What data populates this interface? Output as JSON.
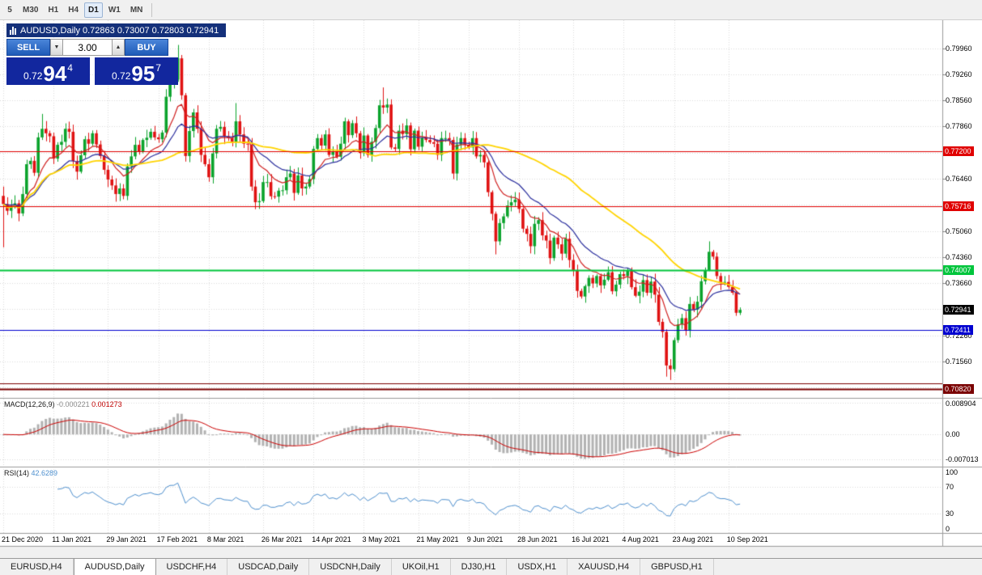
{
  "toolbar": {
    "timeframes": [
      "5",
      "M30",
      "H1",
      "H4",
      "D1",
      "W1",
      "MN"
    ],
    "active_timeframe": "D1"
  },
  "chart": {
    "symbol": "AUDUSD,Daily",
    "title": "AUDUSD,Daily 0.72863 0.73007 0.72803 0.72941"
  },
  "trade_panel": {
    "sell_label": "SELL",
    "buy_label": "BUY",
    "volume": "3.00",
    "sell_price": {
      "prefix": "0.72",
      "big": "94",
      "sup": "4"
    },
    "buy_price": {
      "prefix": "0.72",
      "big": "95",
      "sup": "7"
    }
  },
  "indicators": {
    "macd": {
      "name": "MACD(12,26,9)",
      "value1": "-0.000221",
      "value2": "0.001273"
    },
    "rsi": {
      "name": "RSI(14)",
      "value": "42.6289"
    },
    "macd_axis": [
      "0.008904",
      "0.00",
      "-0.007013"
    ],
    "rsi_axis": [
      "100",
      "70",
      "30",
      "0"
    ]
  },
  "price_axis": {
    "plain_labels": [
      "0.79960",
      "0.79260",
      "0.78560",
      "0.77860",
      "0.76460",
      "0.75060",
      "0.74360",
      "0.73660",
      "0.72260",
      "0.71560"
    ],
    "tags": [
      {
        "text": "0.77200",
        "bg": "#e00000"
      },
      {
        "text": "0.75716",
        "bg": "#e00000"
      },
      {
        "text": "0.74007",
        "bg": "#00c53c"
      },
      {
        "text": "0.72941",
        "bg": "#000000"
      },
      {
        "text": "0.72411",
        "bg": "#0000d0"
      },
      {
        "text": "0.70820",
        "bg": "#7a0000"
      }
    ]
  },
  "tabs": {
    "items": [
      {
        "label": "EURUSD,H4",
        "active": false
      },
      {
        "label": "AUDUSD,Daily",
        "active": true
      },
      {
        "label": "USDCHF,H4",
        "active": false
      },
      {
        "label": "USDCAD,Daily",
        "active": false
      },
      {
        "label": "USDCNH,Daily",
        "active": false
      },
      {
        "label": "UKOil,H1",
        "active": false
      },
      {
        "label": "DJ30,H1",
        "active": false
      },
      {
        "label": "USDX,H1",
        "active": false
      },
      {
        "label": "XAUUSD,H4",
        "active": false
      },
      {
        "label": "GBPUSD,H1",
        "active": false
      }
    ]
  },
  "colors": {
    "candle_up": "#0ba32c",
    "candle_down": "#e01212",
    "ma_fast": "#d02020",
    "ma_mid": "#2b2f9e",
    "ma_slow": "#ffd400",
    "macd_hist": "#b2b2b2",
    "macd_signal": "#cc0000",
    "rsi_line": "#4d8fce",
    "grid": "#dadada",
    "separator": "#9a9a9a"
  },
  "chart_data": {
    "type": "candlestick",
    "symbol": "AUDUSD",
    "timeframe": "Daily",
    "last_ohlc": {
      "open": 0.72863,
      "high": 0.73007,
      "low": 0.72803,
      "close": 0.72941
    },
    "first_open": 0.76,
    "price_range": {
      "min": 0.7058,
      "max": 0.8067
    },
    "grid": {
      "top": 0.7996,
      "step": 0.007
    },
    "closes": [
      0.7578,
      0.756,
      0.7571,
      0.758,
      0.7553,
      0.7605,
      0.7685,
      0.7694,
      0.7662,
      0.7757,
      0.778,
      0.7768,
      0.776,
      0.77,
      0.7737,
      0.7745,
      0.778,
      0.7772,
      0.7693,
      0.7665,
      0.7709,
      0.7752,
      0.774,
      0.7768,
      0.7738,
      0.7707,
      0.767,
      0.7644,
      0.7628,
      0.7605,
      0.762,
      0.76,
      0.7679,
      0.7706,
      0.7737,
      0.7719,
      0.775,
      0.7756,
      0.7772,
      0.7757,
      0.7752,
      0.777,
      0.7866,
      0.791,
      0.7912,
      0.7969,
      0.787,
      0.7707,
      0.7774,
      0.7824,
      0.778,
      0.771,
      0.7685,
      0.765,
      0.7714,
      0.778,
      0.7785,
      0.776,
      0.7755,
      0.7745,
      0.78,
      0.7765,
      0.774,
      0.7738,
      0.7625,
      0.7583,
      0.7586,
      0.7637,
      0.7637,
      0.7599,
      0.7598,
      0.7614,
      0.7615,
      0.765,
      0.766,
      0.7608,
      0.7655,
      0.762,
      0.7625,
      0.7645,
      0.7726,
      0.7755,
      0.7735,
      0.7765,
      0.771,
      0.772,
      0.7705,
      0.774,
      0.78,
      0.7763,
      0.7795,
      0.7768,
      0.7715,
      0.7762,
      0.771,
      0.7745,
      0.7782,
      0.7843,
      0.7837,
      0.7845,
      0.773,
      0.7726,
      0.7775,
      0.7766,
      0.7789,
      0.7725,
      0.7775,
      0.7732,
      0.7755,
      0.775,
      0.7744,
      0.774,
      0.771,
      0.7755,
      0.7755,
      0.775,
      0.766,
      0.7738,
      0.7755,
      0.7737,
      0.773,
      0.7755,
      0.7706,
      0.771,
      0.769,
      0.761,
      0.7552,
      0.7478,
      0.7527,
      0.7545,
      0.7574,
      0.7583,
      0.759,
      0.7565,
      0.7512,
      0.7498,
      0.7465,
      0.7525,
      0.7535,
      0.7494,
      0.748,
      0.7433,
      0.7488,
      0.747,
      0.7445,
      0.7485,
      0.7428,
      0.7401,
      0.7345,
      0.733,
      0.7358,
      0.738,
      0.7365,
      0.7385,
      0.736,
      0.7375,
      0.7395,
      0.7344,
      0.7362,
      0.739,
      0.7385,
      0.74,
      0.7355,
      0.7332,
      0.7343,
      0.7374,
      0.734,
      0.737,
      0.7335,
      0.7262,
      0.7235,
      0.7145,
      0.7135,
      0.7213,
      0.7255,
      0.7272,
      0.724,
      0.731,
      0.7295,
      0.7316,
      0.7371,
      0.74,
      0.745,
      0.7437,
      0.7385,
      0.7368,
      0.7369,
      0.7356,
      0.734,
      0.72863,
      0.72941
    ],
    "candle_overrides": {
      "0": [
        0.76,
        0.7625,
        0.7462,
        0.7578
      ],
      "10": [
        0.7757,
        0.782,
        0.775,
        0.778
      ],
      "45": [
        0.7912,
        0.8005,
        0.7906,
        0.7969
      ],
      "46": [
        0.7969,
        0.7978,
        0.7858,
        0.787
      ],
      "47": [
        0.787,
        0.7876,
        0.7692,
        0.7707
      ],
      "60": [
        0.7745,
        0.7849,
        0.773,
        0.78
      ],
      "98": [
        0.7843,
        0.7891,
        0.782,
        0.7837
      ],
      "116": [
        0.775,
        0.7758,
        0.7645,
        0.766
      ],
      "125": [
        0.769,
        0.7695,
        0.7598,
        0.761
      ],
      "127": [
        0.7552,
        0.7558,
        0.7443,
        0.7478
      ],
      "171": [
        0.7235,
        0.7242,
        0.7115,
        0.7145
      ],
      "172": [
        0.7145,
        0.7162,
        0.7106,
        0.7135
      ],
      "173": [
        0.7135,
        0.722,
        0.7128,
        0.7213
      ],
      "182": [
        0.74,
        0.7478,
        0.7398,
        0.745
      ],
      "190": [
        0.72863,
        0.73007,
        0.72803,
        0.72941
      ]
    },
    "x_labels": [
      {
        "text": "21 Dec 2020",
        "index": 0
      },
      {
        "text": "11 Jan 2021",
        "index": 13
      },
      {
        "text": "29 Jan 2021",
        "index": 27
      },
      {
        "text": "17 Feb 2021",
        "index": 40
      },
      {
        "text": "8 Mar 2021",
        "index": 53
      },
      {
        "text": "26 Mar 2021",
        "index": 67
      },
      {
        "text": "14 Apr 2021",
        "index": 80
      },
      {
        "text": "3 May 2021",
        "index": 93
      },
      {
        "text": "21 May 2021",
        "index": 107
      },
      {
        "text": "9 Jun 2021",
        "index": 120
      },
      {
        "text": "28 Jun 2021",
        "index": 133
      },
      {
        "text": "16 Jul 2021",
        "index": 147
      },
      {
        "text": "4 Aug 2021",
        "index": 160
      },
      {
        "text": "23 Aug 2021",
        "index": 173
      },
      {
        "text": "10 Sep 2021",
        "index": 187
      }
    ],
    "horizontal_lines": [
      {
        "price": 0.772,
        "color": "#e00000",
        "width": 1
      },
      {
        "price": 0.75716,
        "color": "#e00000",
        "width": 1
      },
      {
        "price": 0.74007,
        "color": "#00c53c",
        "width": 2
      },
      {
        "price": 0.72411,
        "color": "#0000d0",
        "width": 1
      },
      {
        "price": 0.7096,
        "color": "#7a0000",
        "width": 1
      },
      {
        "price": 0.7082,
        "color": "#7a0000",
        "width": 2
      }
    ],
    "moving_averages": [
      {
        "period": 10,
        "type": "ema",
        "color": "#d02020",
        "width": 1.2
      },
      {
        "period": 20,
        "type": "ema",
        "color": "#2b2f9e",
        "width": 1.2
      },
      {
        "period": 50,
        "type": "sma",
        "color": "#ffd400",
        "width": 1.8
      }
    ],
    "macd": {
      "fast": 12,
      "slow": 26,
      "signal": 9,
      "current": -0.000221,
      "signal_current": 0.001273,
      "range": {
        "min": -0.0091,
        "max": 0.0101
      }
    },
    "rsi": {
      "period": 14,
      "current": 42.6289,
      "levels": [
        70,
        30
      ],
      "range": [
        0,
        100
      ]
    }
  }
}
